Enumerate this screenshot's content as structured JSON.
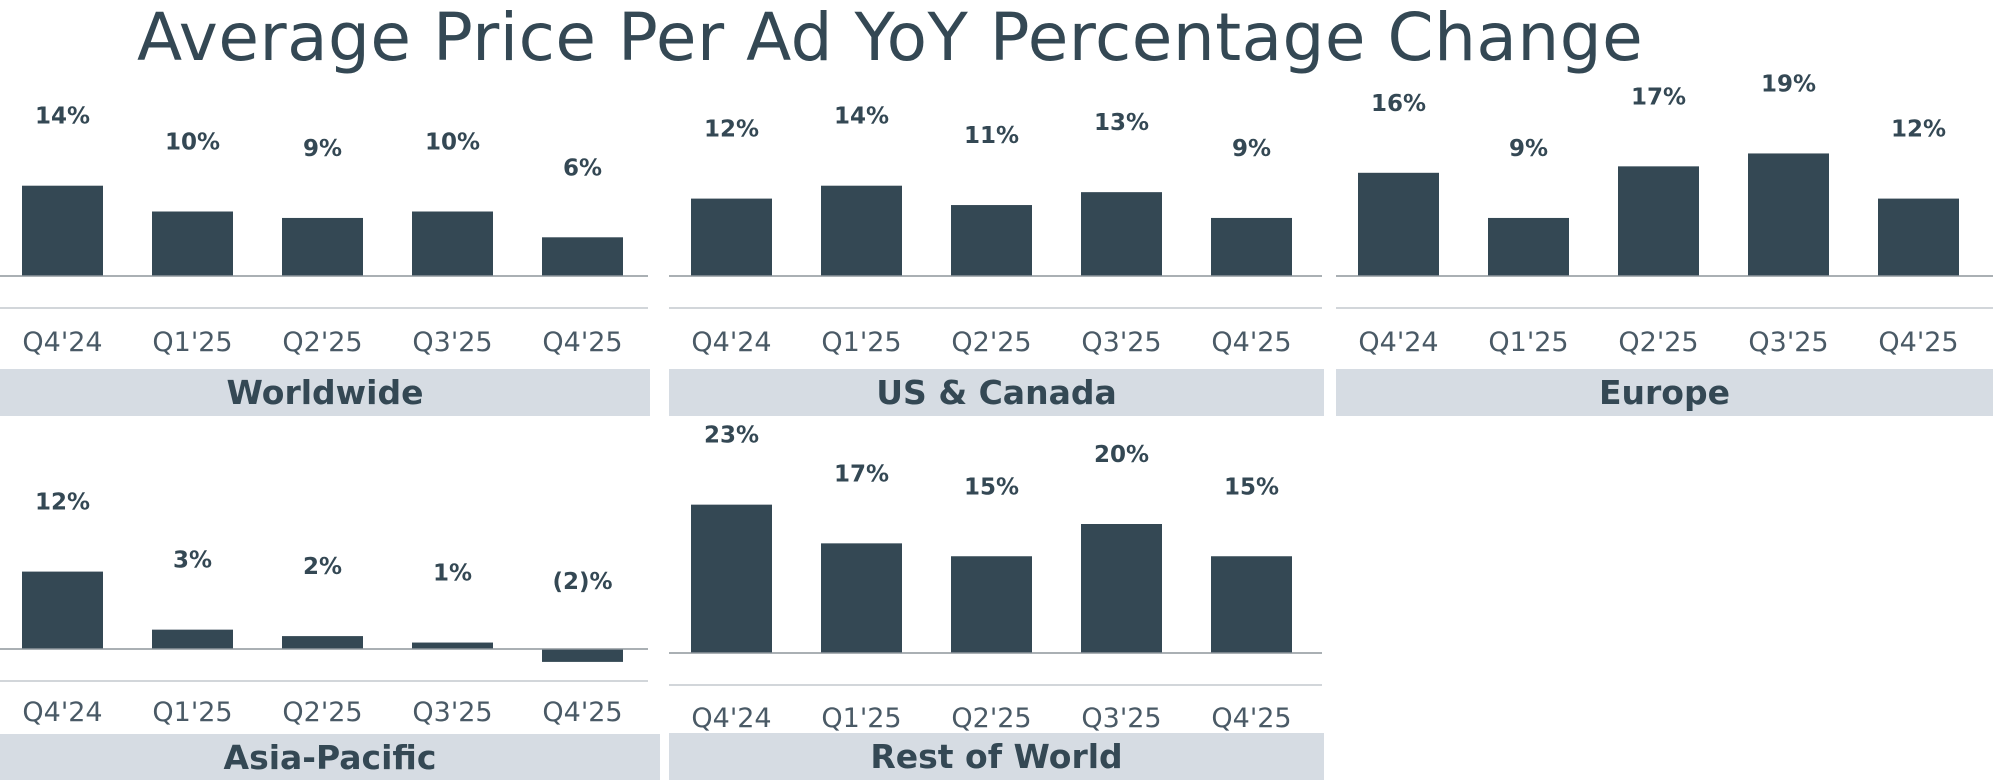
{
  "title": "Average Price Per Ad YoY Percentage Change",
  "colors": {
    "bar": "#344854",
    "band": "#d6dce3",
    "text": "#344854",
    "axis": "#8d959b"
  },
  "chart_data": [
    {
      "type": "bar",
      "title": "Worldwide",
      "categories": [
        "Q4'24",
        "Q1'25",
        "Q2'25",
        "Q3'25",
        "Q4'25"
      ],
      "values": [
        14,
        10,
        9,
        10,
        6
      ],
      "value_labels": [
        "14%",
        "10%",
        "9%",
        "10%",
        "6%"
      ],
      "xlabel": "",
      "ylabel": ""
    },
    {
      "type": "bar",
      "title": "US & Canada",
      "categories": [
        "Q4'24",
        "Q1'25",
        "Q2'25",
        "Q3'25",
        "Q4'25"
      ],
      "values": [
        12,
        14,
        11,
        13,
        9
      ],
      "value_labels": [
        "12%",
        "14%",
        "11%",
        "13%",
        "9%"
      ],
      "xlabel": "",
      "ylabel": ""
    },
    {
      "type": "bar",
      "title": "Europe",
      "categories": [
        "Q4'24",
        "Q1'25",
        "Q2'25",
        "Q3'25",
        "Q4'25"
      ],
      "values": [
        16,
        9,
        17,
        19,
        12
      ],
      "value_labels": [
        "16%",
        "9%",
        "17%",
        "19%",
        "12%"
      ],
      "xlabel": "",
      "ylabel": ""
    },
    {
      "type": "bar",
      "title": "Asia-Pacific",
      "categories": [
        "Q4'24",
        "Q1'25",
        "Q2'25",
        "Q3'25",
        "Q4'25"
      ],
      "values": [
        12,
        3,
        2,
        1,
        -2
      ],
      "value_labels": [
        "12%",
        "3%",
        "2%",
        "1%",
        "(2)%"
      ],
      "xlabel": "",
      "ylabel": ""
    },
    {
      "type": "bar",
      "title": "Rest of World",
      "categories": [
        "Q4'24",
        "Q1'25",
        "Q2'25",
        "Q3'25",
        "Q4'25"
      ],
      "values": [
        23,
        17,
        15,
        20,
        15
      ],
      "value_labels": [
        "23%",
        "17%",
        "15%",
        "20%",
        "15%"
      ],
      "xlabel": "",
      "ylabel": ""
    }
  ]
}
